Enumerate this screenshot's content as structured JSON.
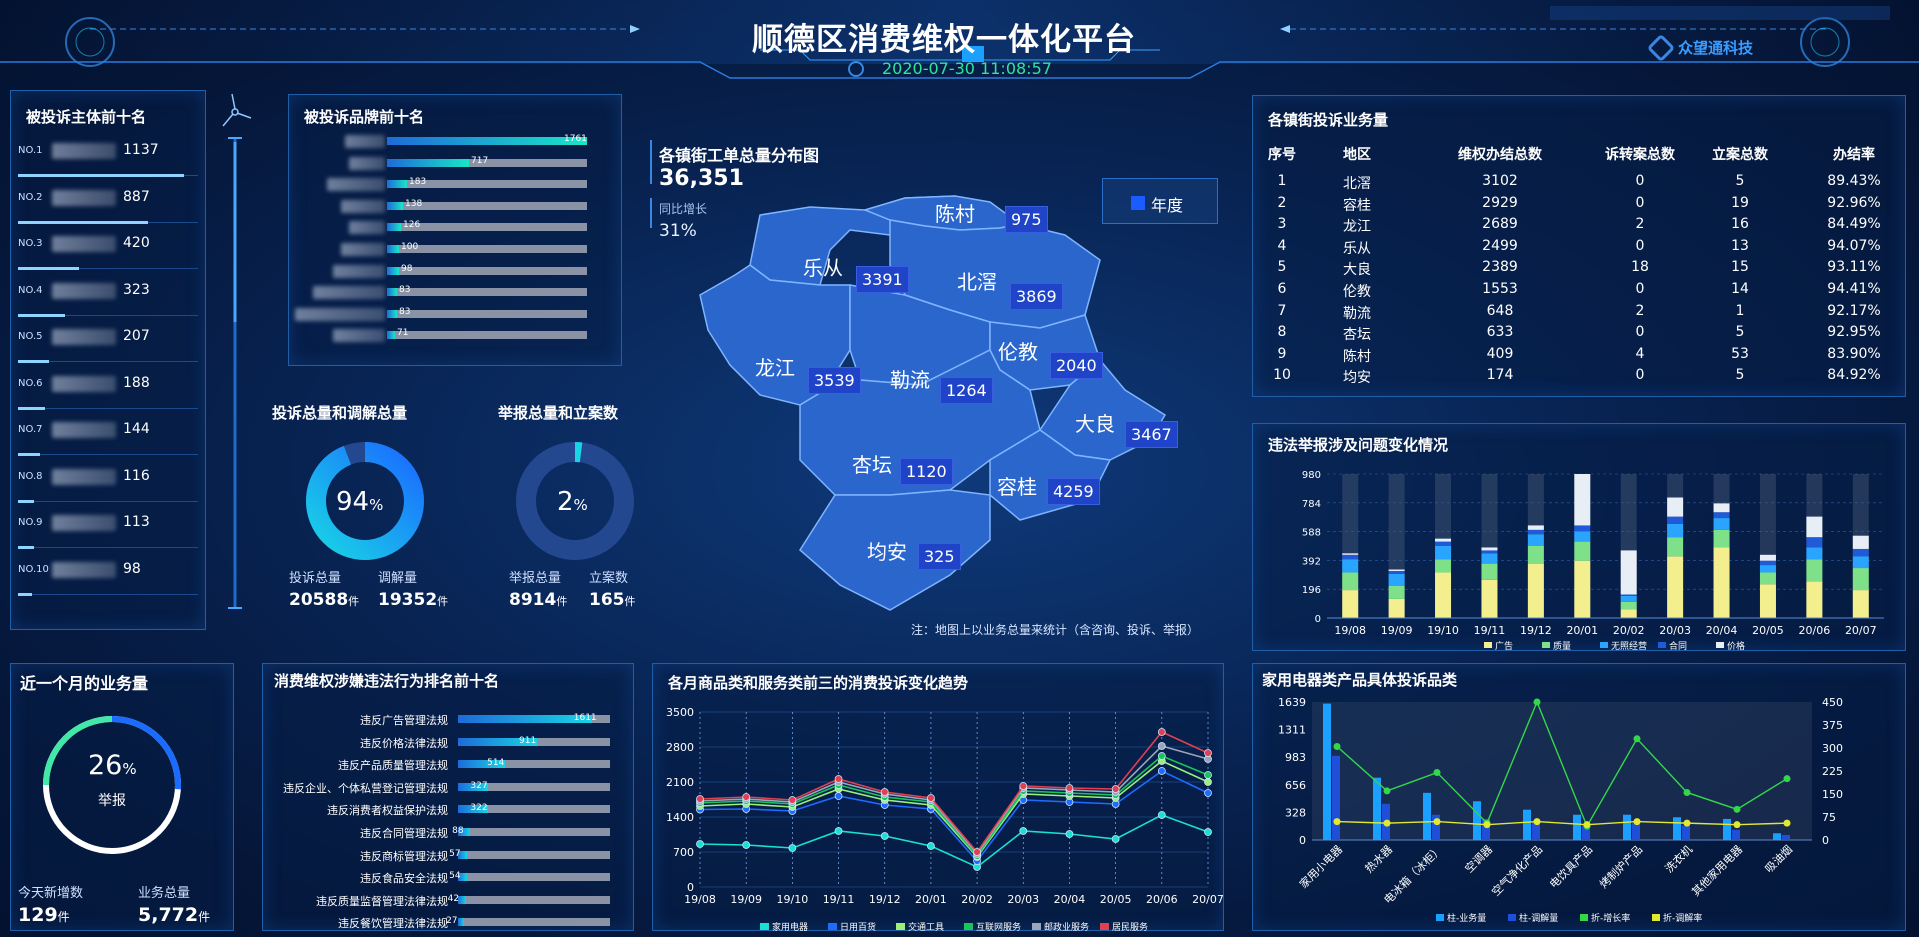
{
  "header": {
    "title": "顺德区消费维权一体化平台",
    "datetime": "2020-07-30 11:08:57",
    "brand": "众望通科技"
  },
  "colors": {
    "accent": "#19d3e6",
    "blue": "#1a8cff",
    "bg": "#061a3d"
  },
  "top_subjects": {
    "title": "被投诉主体前十名",
    "items": [
      {
        "rank": "NO.1",
        "value": "1137",
        "pct": 0.92
      },
      {
        "rank": "NO.2",
        "value": "887",
        "pct": 0.72
      },
      {
        "rank": "NO.3",
        "value": "420",
        "pct": 0.34
      },
      {
        "rank": "NO.4",
        "value": "323",
        "pct": 0.26
      },
      {
        "rank": "NO.5",
        "value": "207",
        "pct": 0.17
      },
      {
        "rank": "NO.6",
        "value": "188",
        "pct": 0.15
      },
      {
        "rank": "NO.7",
        "value": "144",
        "pct": 0.12
      },
      {
        "rank": "NO.8",
        "value": "116",
        "pct": 0.09
      },
      {
        "rank": "NO.9",
        "value": "113",
        "pct": 0.09
      },
      {
        "rank": "NO.10",
        "value": "98",
        "pct": 0.08
      }
    ]
  },
  "top_brands": {
    "title": "被投诉品牌前十名",
    "items": [
      {
        "value": "1761",
        "pct": 1.0
      },
      {
        "value": "717",
        "pct": 0.41
      },
      {
        "value": "183",
        "pct": 0.1
      },
      {
        "value": "138",
        "pct": 0.08
      },
      {
        "value": "126",
        "pct": 0.07
      },
      {
        "value": "100",
        "pct": 0.06
      },
      {
        "value": "98",
        "pct": 0.06
      },
      {
        "value": "83",
        "pct": 0.05
      },
      {
        "value": "83",
        "pct": 0.05
      },
      {
        "value": "71",
        "pct": 0.04
      }
    ]
  },
  "donut1": {
    "title": "投诉总量和调解总量",
    "pct_num": "94",
    "pct_sign": "%",
    "pct": 0.94,
    "label_a": "投诉总量",
    "label_b": "调解量",
    "value_a": "20588",
    "value_b": "19352",
    "unit": "件"
  },
  "donut2": {
    "title": "举报总量和立案数",
    "pct_num": "2",
    "pct_sign": "%",
    "pct": 0.02,
    "label_a": "举报总量",
    "label_b": "立案数",
    "value_a": "8914",
    "value_b": "165",
    "unit": "件"
  },
  "map": {
    "title": "各镇街工单总量分布图",
    "total": "36,351",
    "growth_label": "同比增长",
    "growth": "31%",
    "legend": "年度",
    "note": "注：地图上以业务总量来统计（含咨询、投诉、举报）",
    "regions": [
      {
        "name": "陈村",
        "value": "975"
      },
      {
        "name": "乐从",
        "value": "3391"
      },
      {
        "name": "北滘",
        "value": "3869"
      },
      {
        "name": "龙江",
        "value": "3539"
      },
      {
        "name": "勒流",
        "value": "1264"
      },
      {
        "name": "伦教",
        "value": "2040"
      },
      {
        "name": "大良",
        "value": "3467"
      },
      {
        "name": "杏坛",
        "value": "1120"
      },
      {
        "name": "容桂",
        "value": "4259"
      },
      {
        "name": "均安",
        "value": "325"
      }
    ]
  },
  "town_table": {
    "title": "各镇街投诉业务量",
    "headers": [
      "序号",
      "地区",
      "维权办结总数",
      "诉转案总数",
      "立案总数",
      "办结率"
    ],
    "rows": [
      [
        "1",
        "北滘",
        "3102",
        "0",
        "5",
        "89.43%"
      ],
      [
        "2",
        "容桂",
        "2929",
        "0",
        "19",
        "92.96%"
      ],
      [
        "3",
        "龙江",
        "2689",
        "2",
        "16",
        "84.49%"
      ],
      [
        "4",
        "乐从",
        "2499",
        "0",
        "13",
        "94.07%"
      ],
      [
        "5",
        "大良",
        "2389",
        "18",
        "15",
        "93.11%"
      ],
      [
        "6",
        "伦教",
        "1553",
        "0",
        "14",
        "94.41%"
      ],
      [
        "7",
        "勒流",
        "648",
        "2",
        "1",
        "92.17%"
      ],
      [
        "8",
        "杏坛",
        "633",
        "0",
        "5",
        "92.95%"
      ],
      [
        "9",
        "陈村",
        "409",
        "4",
        "53",
        "83.90%"
      ],
      [
        "10",
        "均安",
        "174",
        "0",
        "5",
        "84.92%"
      ]
    ]
  },
  "monthly": {
    "title": "近一个月的业务量",
    "pct_num": "26",
    "pct_sign": "%",
    "pct": 0.26,
    "sub": "举报",
    "label_new": "今天新增数",
    "label_total": "业务总量",
    "value_new": "129",
    "value_total": "5,772",
    "unit": "件"
  },
  "violations": {
    "title": "消费维权涉嫌违法行为排名前十名",
    "items": [
      {
        "label": "违反广告管理法规",
        "value": "1611",
        "pct": 0.88
      },
      {
        "label": "违反价格法律法规",
        "value": "911",
        "pct": 0.52
      },
      {
        "label": "违反产品质量管理法规",
        "value": "514",
        "pct": 0.31
      },
      {
        "label": "违反企业、个体私营登记管理法规",
        "value": "327",
        "pct": 0.2
      },
      {
        "label": "违反消费者权益保护法规",
        "value": "322",
        "pct": 0.2
      },
      {
        "label": "违反合同管理法规",
        "value": "88",
        "pct": 0.08
      },
      {
        "label": "违反商标管理法规",
        "value": "57",
        "pct": 0.06
      },
      {
        "label": "违反食品安全法规",
        "value": "54",
        "pct": 0.06
      },
      {
        "label": "违反质量监督管理法律法规",
        "value": "42",
        "pct": 0.05
      },
      {
        "label": "违反餐饮管理法律法规",
        "value": "27",
        "pct": 0.04
      }
    ]
  },
  "chart_data": [
    {
      "type": "bar",
      "title": "违法举报涉及问题变化情况",
      "categories": [
        "19/08",
        "19/09",
        "19/10",
        "19/11",
        "19/12",
        "20/01",
        "20/02",
        "20/03",
        "20/04",
        "20/05",
        "20/06",
        "20/07"
      ],
      "yticks": [
        "0",
        "196",
        "392",
        "588",
        "784",
        "980"
      ],
      "ylim": [
        0,
        980
      ],
      "stacked": true,
      "series": [
        {
          "name": "广告",
          "color": "#f3ef8e",
          "values": [
            190,
            130,
            310,
            260,
            370,
            390,
            60,
            420,
            480,
            230,
            250,
            190
          ]
        },
        {
          "name": "质量",
          "color": "#7fe08a",
          "values": [
            120,
            90,
            90,
            110,
            120,
            130,
            50,
            130,
            120,
            80,
            150,
            150
          ]
        },
        {
          "name": "无照经营",
          "color": "#2aa5ff",
          "values": [
            90,
            80,
            90,
            70,
            80,
            70,
            40,
            90,
            80,
            50,
            80,
            80
          ]
        },
        {
          "name": "合同",
          "color": "#1f5ad8",
          "values": [
            30,
            20,
            30,
            20,
            30,
            40,
            10,
            50,
            40,
            30,
            70,
            50
          ]
        },
        {
          "name": "价格",
          "color": "#e8eef6",
          "values": [
            10,
            10,
            20,
            20,
            30,
            350,
            300,
            130,
            60,
            40,
            140,
            90
          ]
        }
      ]
    },
    {
      "type": "line",
      "title": "各月商品类和服务类前三的消费投诉变化趋势",
      "categories": [
        "19/08",
        "19/09",
        "19/10",
        "19/11",
        "19/12",
        "20/01",
        "20/02",
        "20/03",
        "20/04",
        "20/05",
        "20/06",
        "20/07"
      ],
      "yticks": [
        "0",
        "700",
        "1400",
        "2100",
        "2800",
        "3500"
      ],
      "ylim": [
        0,
        3500
      ],
      "series": [
        {
          "name": "家用电器",
          "color": "#19e0d0",
          "values": [
            860,
            840,
            780,
            1120,
            1020,
            820,
            400,
            1120,
            1060,
            960,
            1440,
            1100
          ]
        },
        {
          "name": "日用百货",
          "color": "#1f6bff",
          "values": [
            1550,
            1560,
            1520,
            1820,
            1640,
            1560,
            520,
            1740,
            1700,
            1660,
            2320,
            1880
          ]
        },
        {
          "name": "交通工具",
          "color": "#9cf07a",
          "values": [
            1620,
            1660,
            1600,
            1960,
            1740,
            1640,
            600,
            1860,
            1820,
            1780,
            2520,
            2100
          ]
        },
        {
          "name": "互联网服务",
          "color": "#19c45a",
          "values": [
            1680,
            1720,
            1660,
            2040,
            1800,
            1700,
            620,
            1920,
            1880,
            1840,
            2620,
            2240
          ]
        },
        {
          "name": "邮政业服务",
          "color": "#9aa5b8",
          "values": [
            1720,
            1760,
            1700,
            2100,
            1860,
            1740,
            660,
            1980,
            1940,
            1900,
            2820,
            2560
          ]
        },
        {
          "name": "居民服务",
          "color": "#e04050",
          "values": [
            1760,
            1800,
            1740,
            2160,
            1900,
            1780,
            700,
            2020,
            1980,
            1960,
            3100,
            2680
          ]
        }
      ]
    },
    {
      "type": "bar+line",
      "title": "家用电器类产品具体投诉品类",
      "categories": [
        "家用小电器",
        "热水器",
        "电冰箱（冰柜）",
        "空调器",
        "空气净化产品",
        "电饮具产品",
        "烤制炉产品",
        "洗衣机",
        "其他家用电器",
        "吸油烟"
      ],
      "yticks_left": [
        "0",
        "328",
        "656",
        "983",
        "1311",
        "1639"
      ],
      "ylim_left": [
        0,
        1639
      ],
      "yticks_right": [
        "0",
        "75",
        "150",
        "225",
        "300",
        "375",
        "450"
      ],
      "ylim_right": [
        0,
        450
      ],
      "series": [
        {
          "name": "柱-业务量",
          "color": "#1aa0ff",
          "kind": "bar",
          "values": [
            1620,
            740,
            560,
            460,
            360,
            300,
            300,
            270,
            250,
            80
          ]
        },
        {
          "name": "柱-调解量",
          "color": "#1f4fd8",
          "kind": "bar",
          "values": [
            1000,
            430,
            300,
            250,
            220,
            190,
            200,
            170,
            120,
            60
          ]
        },
        {
          "name": "折-增长率",
          "color": "#32d84a",
          "kind": "line",
          "values": [
            305,
            160,
            220,
            55,
            450,
            45,
            330,
            155,
            100,
            200
          ]
        },
        {
          "name": "折-调解率",
          "color": "#e0e830",
          "kind": "line",
          "values": [
            60,
            55,
            60,
            50,
            60,
            50,
            60,
            55,
            50,
            55
          ]
        }
      ]
    }
  ]
}
